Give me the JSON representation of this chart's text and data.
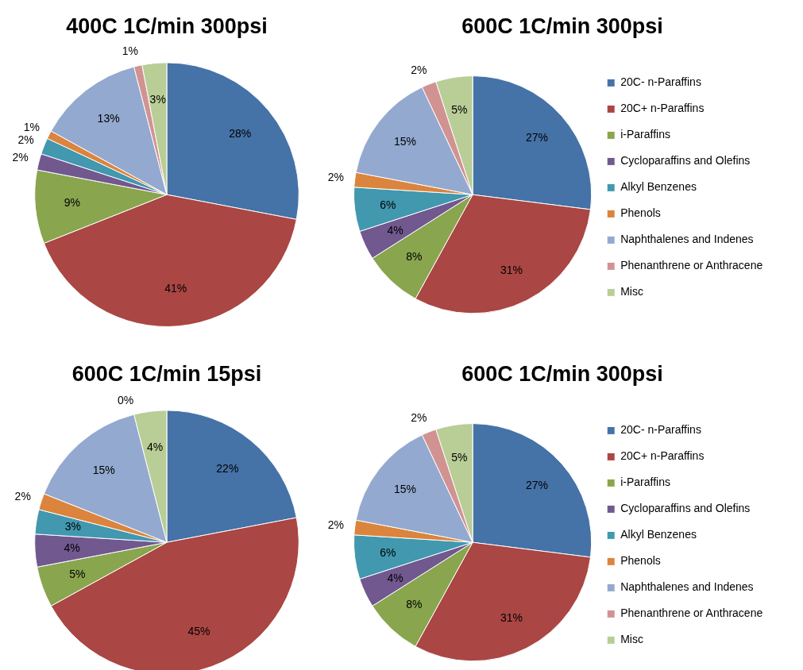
{
  "chart_data": [
    {
      "type": "pie",
      "title": "400C 1C/min 300psi",
      "categories": [
        null,
        null,
        null,
        null,
        null,
        null,
        null,
        null,
        null
      ],
      "values": [
        28,
        41,
        9,
        2,
        2,
        1,
        13,
        1,
        3
      ],
      "value_labels": [
        "28%",
        "41%",
        "9%",
        "2%",
        "2%",
        "1%",
        "13%",
        "1%",
        "3%"
      ],
      "colors": [
        "#4572a7",
        "#aa4643",
        "#89a54e",
        "#71588f",
        "#4198af",
        "#db843d",
        "#93a9cf",
        "#d19392",
        "#b9cd96"
      ],
      "legend": false
    },
    {
      "type": "pie",
      "title": "600C 1C/min 300psi",
      "categories": [
        "20C- n-Paraffins",
        "20C+ n-Paraffins",
        "i-Paraffins",
        "Cycloparaffins and Olefins",
        "Alkyl Benzenes",
        "Phenols",
        "Naphthalenes and Indenes",
        "Phenanthrene or Anthracene",
        "Misc"
      ],
      "values": [
        27,
        31,
        8,
        4,
        6,
        2,
        15,
        2,
        5
      ],
      "value_labels": [
        "27%",
        "31%",
        "8%",
        "4%",
        "6%",
        "2%",
        "15%",
        "2%",
        "5%"
      ],
      "colors": [
        "#4572a7",
        "#aa4643",
        "#89a54e",
        "#71588f",
        "#4198af",
        "#db843d",
        "#93a9cf",
        "#d19392",
        "#b9cd96"
      ],
      "legend": "right"
    },
    {
      "type": "pie",
      "title": "600C 1C/min 15psi",
      "categories": [
        null,
        null,
        null,
        null,
        null,
        null,
        null,
        null,
        null
      ],
      "values": [
        22,
        45,
        5,
        4,
        3,
        2,
        15,
        0,
        4
      ],
      "value_labels": [
        "22%",
        "45%",
        "5%",
        "4%",
        "3%",
        "2%",
        "15%",
        "0%",
        "4%"
      ],
      "colors": [
        "#4572a7",
        "#aa4643",
        "#89a54e",
        "#71588f",
        "#4198af",
        "#db843d",
        "#93a9cf",
        "#d19392",
        "#b9cd96"
      ],
      "legend": false
    },
    {
      "type": "pie",
      "title": "600C 1C/min 300psi",
      "categories": [
        "20C- n-Paraffins",
        "20C+ n-Paraffins",
        "i-Paraffins",
        "Cycloparaffins and Olefins",
        "Alkyl Benzenes",
        "Phenols",
        "Naphthalenes and Indenes",
        "Phenanthrene or Anthracene",
        "Misc"
      ],
      "values": [
        27,
        31,
        8,
        4,
        6,
        2,
        15,
        2,
        5
      ],
      "value_labels": [
        "27%",
        "31%",
        "8%",
        "4%",
        "6%",
        "2%",
        "15%",
        "2%",
        "5%"
      ],
      "colors": [
        "#4572a7",
        "#aa4643",
        "#89a54e",
        "#71588f",
        "#4198af",
        "#db843d",
        "#93a9cf",
        "#d19392",
        "#b9cd96"
      ],
      "legend": "right"
    }
  ]
}
